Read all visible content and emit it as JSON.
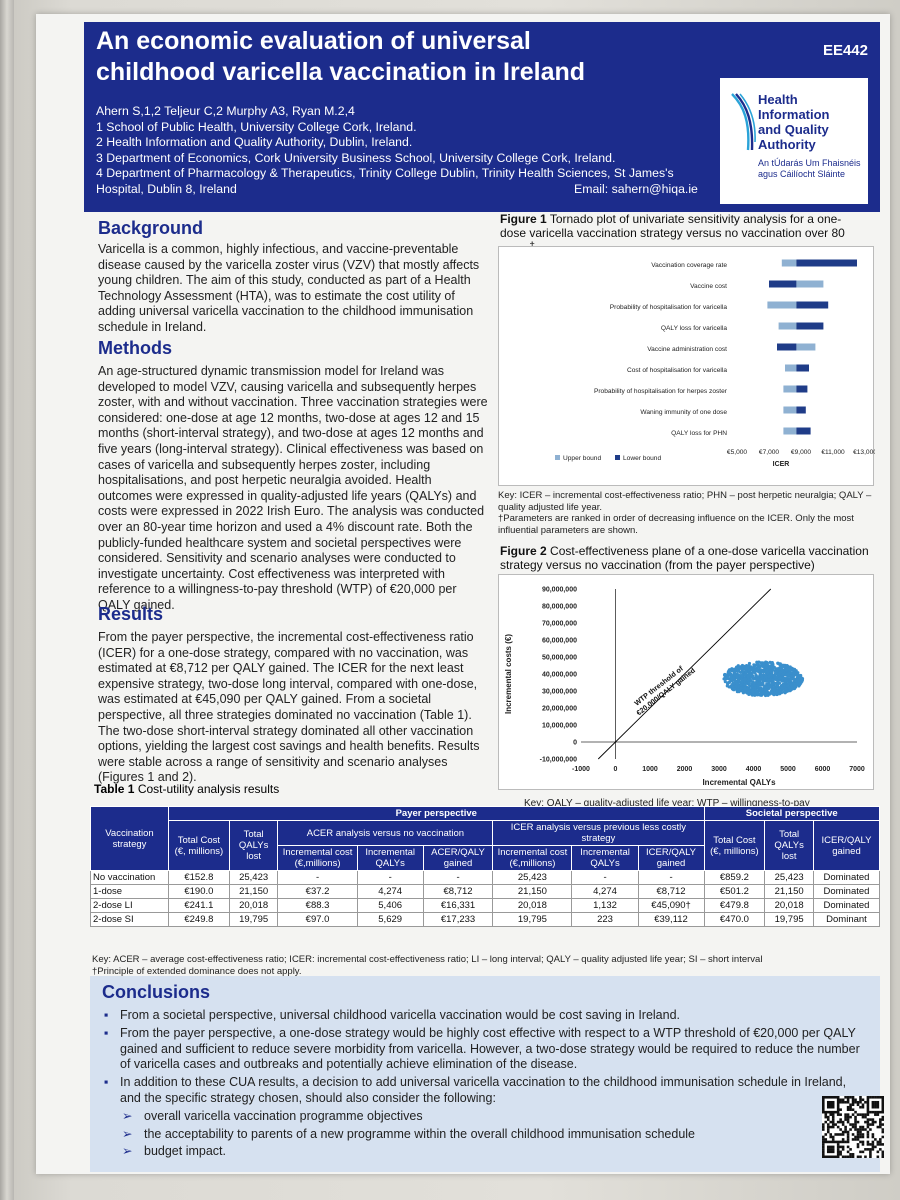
{
  "header": {
    "title": "An economic evaluation of universal childhood varicella vaccination in Ireland",
    "code": "EE442",
    "authors": "Ahern S,1,2 Teljeur C,2 Murphy A3, Ryan M.2,4",
    "affiliations": [
      "1 School of Public Health, University College Cork, Ireland.",
      "2 Health Information and Quality Authority, Dublin, Ireland.",
      "3 Department of Economics, Cork University Business School, University College Cork, Ireland.",
      "4 Department of Pharmacology & Therapeutics, Trinity College Dublin, Trinity Health Sciences, St James's Hospital, Dublin 8, Ireland"
    ],
    "email": "Email: sahern@hiqa.ie"
  },
  "logo": {
    "line1": "Health",
    "line2": "Information",
    "line3": "and Quality",
    "line4": "Authority",
    "irish1": "An tÚdarás Um Fhaisnéis",
    "irish2": "agus Cáilíocht Sláinte"
  },
  "background": {
    "heading": "Background",
    "text": "Varicella is a common, highly infectious, and vaccine-preventable disease caused by the varicella zoster virus (VZV) that mostly affects young children. The aim of this study, conducted as part of a Health Technology Assessment (HTA), was to estimate the cost utility of adding universal varicella vaccination to the childhood immunisation schedule in Ireland."
  },
  "methods": {
    "heading": "Methods",
    "text": "An age-structured dynamic transmission model for Ireland was developed to model VZV, causing varicella and subsequently herpes zoster, with and without vaccination. Three vaccination strategies were considered: one-dose at age 12 months, two-dose at ages 12 and 15 months (short-interval strategy), and two-dose at ages 12 months and five years (long-interval strategy). Clinical effectiveness was based on cases of varicella and subsequently herpes zoster, including hospitalisations, and post herpetic neuralgia avoided. Health outcomes were expressed in quality-adjusted life years (QALYs) and costs were expressed in 2022 Irish Euro. The analysis was conducted over an 80-year time horizon and used a 4% discount rate. Both the publicly-funded healthcare system and societal perspectives were considered. Sensitivity and scenario analyses were conducted to investigate uncertainty. Cost effectiveness was interpreted with reference to a willingness-to-pay threshold (WTP) of €20,000 per QALY gained."
  },
  "results": {
    "heading": "Results",
    "text": "From the payer perspective, the incremental cost-effectiveness ratio (ICER) for a one-dose strategy, compared with no vaccination, was estimated at €8,712 per QALY gained. The ICER for the next least expensive strategy, two-dose long interval, compared with one-dose, was estimated at €45,090 per QALY gained. From a societal perspective, all three strategies dominated no vaccination (Table 1). The two-dose short-interval strategy dominated all other vaccination options, yielding the largest cost savings and health benefits. Results were stable across a range of sensitivity and scenario analyses (Figures 1 and 2)."
  },
  "figure1": {
    "label": "Figure 1",
    "caption": "Tornado plot of univariate sensitivity analysis for a one-dose varicella vaccination strategy versus no vaccination over 80 years",
    "caption_mark": "†",
    "key": "Key: ICER – incremental cost-effectiveness ratio; PHN – post herpetic neuralgia; QALY – quality adjusted life year.",
    "note": "†Parameters are ranked in order of decreasing influence on the ICER. Only the most influential parameters are shown."
  },
  "figure2": {
    "label": "Figure 2",
    "caption": "Cost-effectiveness plane of a one-dose varicella vaccination strategy versus no vaccination (from the payer perspective)",
    "key": "Key: QALY – quality-adjusted life year; WTP – willingness-to-pay",
    "threshold_label_1": "WTP threshold of",
    "threshold_label_2": "€20,000/QALY gained"
  },
  "chart_data": [
    {
      "type": "bar",
      "orientation": "horizontal-tornado",
      "base": 8712,
      "categories": [
        "Vaccination coverage rate",
        "Vaccine cost",
        "Probability of hospitalisation for varicella",
        "QALY loss for varicella",
        "Vaccine administration cost",
        "Cost of hospitalisation for varicella",
        "Probability of hospitalisation for herpes zoster",
        "Waning immunity of one dose",
        "QALY loss for PHN"
      ],
      "series": [
        {
          "name": "Upper bound",
          "color": "#8fb1d2",
          "values": [
            7800,
            10400,
            6900,
            7600,
            9900,
            8000,
            7900,
            7900,
            7900
          ]
        },
        {
          "name": "Lower bound",
          "color": "#1f3c88",
          "values": [
            12500,
            7000,
            10700,
            10400,
            7500,
            9500,
            9400,
            9300,
            9600
          ]
        }
      ],
      "xlabel": "ICER",
      "xticks": [
        "€5,000",
        "€7,000",
        "€9,000",
        "€11,000",
        "€13,000"
      ],
      "xlim": [
        5000,
        13000
      ],
      "legend": "bottom-left"
    },
    {
      "type": "scatter",
      "xlabel": "Incremental QALYs",
      "ylabel": "Incremental costs (€)",
      "xlim": [
        -1000,
        7000
      ],
      "ylim": [
        -10000000,
        90000000
      ],
      "xticks": [
        "-1000",
        "0",
        "1000",
        "2000",
        "3000",
        "4000",
        "5000",
        "6000",
        "7000"
      ],
      "yticks": [
        "-10,000,000",
        "0",
        "10,000,000",
        "20,000,000",
        "30,000,000",
        "40,000,000",
        "50,000,000",
        "60,000,000",
        "70,000,000",
        "80,000,000",
        "90,000,000"
      ],
      "cloud": {
        "x_center": 4274,
        "x_spread": 1150,
        "y_center": 37200000,
        "y_spread": 10000000,
        "color": "#3a8fcc"
      },
      "threshold_line": {
        "slope": 20000
      }
    }
  ],
  "table1": {
    "caption_label": "Table 1",
    "caption": "Cost-utility analysis results",
    "payer_header": "Payer perspective",
    "societal_header": "Societal perspective",
    "strategy_header": "Vaccination strategy",
    "total_cost": "Total Cost (€, millions)",
    "total_qalys": "Total QALYs lost",
    "acer_header": "ACER analysis versus no vaccination",
    "icer_header": "ICER analysis versus previous less costly strategy",
    "inc_cost": "Incremental cost (€,millions)",
    "inc_qalys": "Incremental QALYs",
    "acer_qaly": "ACER/QALY gained",
    "icer_qaly": "ICER/QALY gained",
    "rows": [
      [
        "No vaccination",
        "€152.8",
        "25,423",
        "-",
        "-",
        "-",
        "25,423",
        "-",
        "-",
        "€859.2",
        "25,423",
        "Dominated"
      ],
      [
        "1-dose",
        "€190.0",
        "21,150",
        "€37.2",
        "4,274",
        "€8,712",
        "21,150",
        "4,274",
        "€8,712",
        "€501.2",
        "21,150",
        "Dominated"
      ],
      [
        "2-dose LI",
        "€241.1",
        "20,018",
        "€88.3",
        "5,406",
        "€16,331",
        "20,018",
        "1,132",
        "€45,090†",
        "€479.8",
        "20,018",
        "Dominated"
      ],
      [
        "2-dose SI",
        "€249.8",
        "19,795",
        "€97.0",
        "5,629",
        "€17,233",
        "19,795",
        "223",
        "€39,112",
        "€470.0",
        "19,795",
        "Dominant"
      ]
    ],
    "key": "Key: ACER – average cost-effectiveness ratio; ICER: incremental cost-effectiveness ratio; LI – long interval; QALY – quality adjusted life year; SI – short interval",
    "note": "†Principle of extended dominance does not apply."
  },
  "conclusions": {
    "heading": "Conclusions",
    "items": [
      "From a societal perspective, universal childhood varicella vaccination would be cost saving in Ireland.",
      "From the payer perspective, a one-dose strategy would be highly cost effective with respect to a WTP threshold of €20,000 per QALY gained and sufficient to reduce severe morbidity from varicella. However, a two-dose strategy would be required to reduce the number of varicella cases and outbreaks and potentially achieve elimination of the disease.",
      "In addition to these CUA results, a decision to add universal varicella vaccination to the childhood immunisation schedule in Ireland, and the specific strategy chosen, should also consider the following:"
    ],
    "subitems": [
      "overall varicella vaccination programme objectives",
      "the acceptability to parents of a new programme within the overall childhood immunisation schedule",
      "budget impact."
    ]
  }
}
